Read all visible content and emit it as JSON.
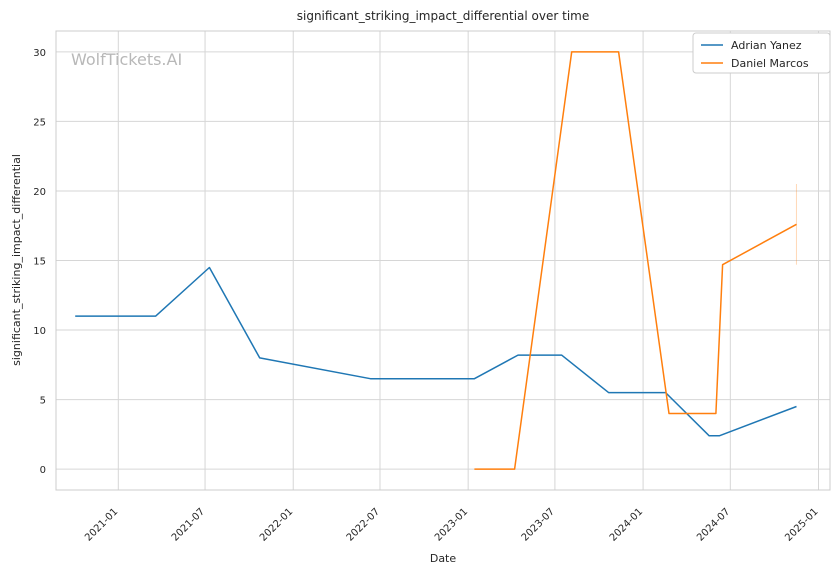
{
  "watermark": "WolfTickets.AI",
  "chart_data": {
    "type": "line",
    "title": "significant_striking_impact_differential over time",
    "xlabel": "Date",
    "ylabel": "significant_striking_impact_differential",
    "x_tick_labels": [
      "2021-01",
      "2021-07",
      "2022-01",
      "2022-07",
      "2023-01",
      "2023-07",
      "2024-01",
      "2024-07",
      "2025-01"
    ],
    "x_tick_dates": [
      "2021-01-01",
      "2021-07-01",
      "2022-01-01",
      "2022-07-01",
      "2023-01-01",
      "2023-07-01",
      "2024-01-01",
      "2024-07-01",
      "2025-01-01"
    ],
    "xlim": [
      "2020-08-24",
      "2025-01-25"
    ],
    "y_ticks": [
      0,
      5,
      10,
      15,
      20,
      25,
      30
    ],
    "ylim": [
      -1.5,
      31.5
    ],
    "grid": true,
    "legend_position": "top-right",
    "series": [
      {
        "name": "Adrian Yanez",
        "color": "#1f77b4",
        "points": [
          {
            "x": "2020-10-03",
            "y": 11.0
          },
          {
            "x": "2021-03-20",
            "y": 11.0
          },
          {
            "x": "2021-07-10",
            "y": 14.5
          },
          {
            "x": "2021-10-23",
            "y": 8.0
          },
          {
            "x": "2022-06-11",
            "y": 6.5
          },
          {
            "x": "2023-01-14",
            "y": 6.5
          },
          {
            "x": "2023-04-15",
            "y": 8.2
          },
          {
            "x": "2023-07-15",
            "y": 8.2
          },
          {
            "x": "2023-10-21",
            "y": 5.5
          },
          {
            "x": "2024-02-17",
            "y": 5.5
          },
          {
            "x": "2024-05-18",
            "y": 2.4
          },
          {
            "x": "2024-06-08",
            "y": 2.4
          },
          {
            "x": "2024-11-16",
            "y": 4.5
          }
        ]
      },
      {
        "name": "Daniel Marcos",
        "color": "#ff7f0e",
        "points": [
          {
            "x": "2023-01-14",
            "y": 0.0
          },
          {
            "x": "2023-04-08",
            "y": 0.0
          },
          {
            "x": "2023-08-05",
            "y": 30.0
          },
          {
            "x": "2023-11-11",
            "y": 30.0
          },
          {
            "x": "2024-02-24",
            "y": 4.0
          },
          {
            "x": "2024-06-01",
            "y": 4.0
          },
          {
            "x": "2024-06-15",
            "y": 14.7
          },
          {
            "x": "2024-11-16",
            "y": 17.6
          }
        ],
        "error_bar": {
          "x": "2024-11-16",
          "low": 14.7,
          "high": 20.5
        }
      }
    ]
  }
}
